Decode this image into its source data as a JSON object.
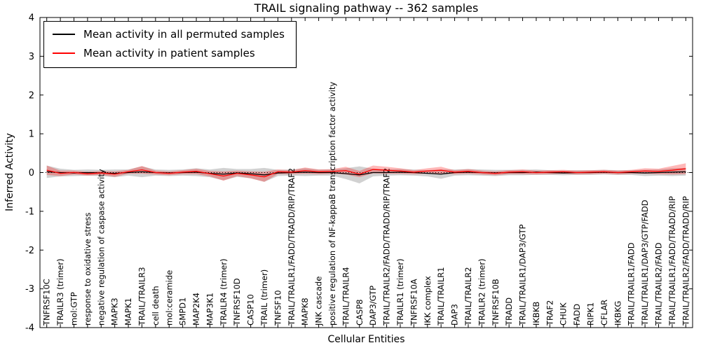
{
  "chart_data": {
    "type": "line",
    "title": "TRAIL signaling pathway -- 362 samples",
    "xlabel": "Cellular Entities",
    "ylabel": "Inferred Activity",
    "ylim": [
      -4,
      4
    ],
    "yticks": [
      -4,
      -3,
      -2,
      -1,
      0,
      1,
      2,
      3,
      4
    ],
    "grid": false,
    "legend_position": "upper left",
    "zero_line": true,
    "categories": [
      "TNFRSF10C",
      "TRAILR3 (trimer)",
      "mol:GTP",
      "response to oxidative stress",
      "negative regulation of caspase activity",
      "MAPK3",
      "MAPK1",
      "TRAIL/TRAILR3",
      "cell death",
      "mol:ceramide",
      "SMPD1",
      "MAP2K4",
      "MAP3K1",
      "TRAILR4 (trimer)",
      "TNFRSF10D",
      "CASP10",
      "TRAIL (trimer)",
      "TNFSF10",
      "TRAIL/TRAILR1/FADD/TRADD/RIP/TRAF2",
      "MAPK8",
      "JNK cascade",
      "positive regulation of NF-kappaB transcription factor activity",
      "TRAIL/TRAILR4",
      "CASP8",
      "DAP3/GTP",
      "TRAIL/TRAILR2/FADD/TRADD/RIP/TRAF2",
      "TRAILR1 (trimer)",
      "TNFRSF10A",
      "IKK complex",
      "TRAIL/TRAILR1",
      "DAP3",
      "TRAIL/TRAILR2",
      "TRAILR2 (trimer)",
      "TNFRSF10B",
      "TRADD",
      "TRAIL/TRAILR1/DAP3/GTP",
      "IKBKB",
      "TRAF2",
      "CHUK",
      "FADD",
      "RIPK1",
      "CFLAR",
      "IKBKG",
      "TRAIL/TRAILR1/FADD",
      "TRAIL/TRAILR1/DAP3/GTP/FADD",
      "TRAIL/TRAILR2/FADD",
      "TRAIL/TRAILR1/FADD/TRADD/RIP",
      "TRAIL/TRAILR2/FADD/TRADD/RIP"
    ],
    "series": [
      {
        "name": "Mean activity in all permuted samples",
        "color": "#000000",
        "band_color": "rgba(0,0,0,0.18)",
        "values": [
          0.02,
          0.0,
          -0.01,
          0.0,
          -0.01,
          -0.02,
          0.0,
          0.02,
          0.0,
          -0.01,
          0.0,
          0.01,
          -0.02,
          -0.04,
          -0.01,
          -0.03,
          -0.06,
          -0.01,
          0.0,
          0.01,
          0.0,
          0.0,
          -0.03,
          -0.06,
          0.0,
          0.0,
          0.01,
          0.0,
          -0.02,
          -0.04,
          0.0,
          0.01,
          0.0,
          -0.01,
          0.0,
          0.0,
          0.01,
          0.0,
          -0.01,
          0.0,
          0.0,
          0.01,
          0.0,
          0.0,
          -0.01,
          0.0,
          0.01,
          0.02
        ],
        "band": [
          0.16,
          0.1,
          0.08,
          0.08,
          0.08,
          0.1,
          0.08,
          0.14,
          0.08,
          0.08,
          0.08,
          0.1,
          0.1,
          0.16,
          0.1,
          0.12,
          0.18,
          0.08,
          0.08,
          0.1,
          0.08,
          0.08,
          0.14,
          0.22,
          0.1,
          0.08,
          0.08,
          0.08,
          0.08,
          0.12,
          0.08,
          0.08,
          0.08,
          0.08,
          0.07,
          0.07,
          0.07,
          0.06,
          0.06,
          0.06,
          0.06,
          0.06,
          0.06,
          0.06,
          0.08,
          0.08,
          0.1,
          0.1
        ]
      },
      {
        "name": "Mean activity in patient samples",
        "color": "#ff0000",
        "band_color": "rgba(255,0,0,0.28)",
        "values": [
          0.06,
          -0.02,
          0.0,
          -0.03,
          -0.01,
          -0.04,
          0.02,
          0.07,
          0.0,
          -0.02,
          0.01,
          0.03,
          -0.03,
          -0.09,
          -0.02,
          -0.06,
          -0.11,
          0.02,
          0.01,
          0.05,
          0.02,
          0.03,
          0.05,
          -0.04,
          0.08,
          0.06,
          0.04,
          0.01,
          0.04,
          0.06,
          0.01,
          0.03,
          0.0,
          -0.02,
          0.01,
          0.02,
          0.0,
          0.01,
          0.02,
          0.0,
          0.01,
          0.02,
          0.0,
          0.02,
          0.04,
          0.03,
          0.06,
          0.1
        ],
        "band": [
          0.12,
          0.07,
          0.05,
          0.05,
          0.05,
          0.07,
          0.05,
          0.1,
          0.05,
          0.05,
          0.05,
          0.07,
          0.07,
          0.12,
          0.07,
          0.09,
          0.13,
          0.06,
          0.05,
          0.08,
          0.06,
          0.06,
          0.1,
          0.08,
          0.1,
          0.09,
          0.07,
          0.05,
          0.07,
          0.09,
          0.05,
          0.06,
          0.05,
          0.05,
          0.05,
          0.06,
          0.05,
          0.05,
          0.05,
          0.05,
          0.05,
          0.05,
          0.05,
          0.05,
          0.07,
          0.07,
          0.11,
          0.14
        ]
      }
    ]
  }
}
